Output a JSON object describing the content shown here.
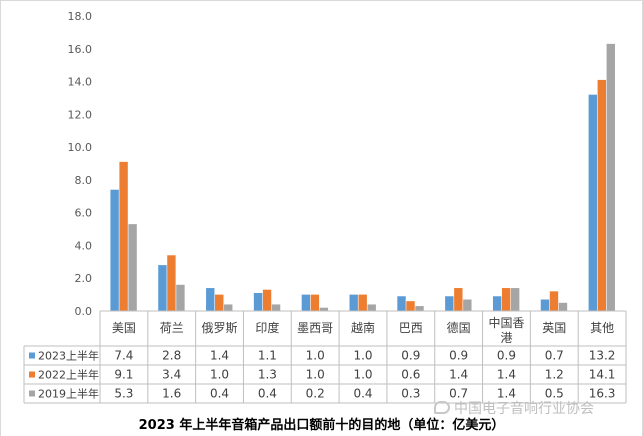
{
  "chart_data": {
    "type": "bar",
    "title": "2023 年上半年音箱产品出口额前十的目的地（单位：亿美元）",
    "categories": [
      "美国",
      "荷兰",
      "俄罗斯",
      "印度",
      "墨西哥",
      "越南",
      "巴西",
      "德国",
      "中国香港",
      "英国",
      "其他"
    ],
    "series": [
      {
        "name": "2023上半年",
        "color": "#5b9bd5",
        "values": [
          7.4,
          2.8,
          1.4,
          1.1,
          1.0,
          1.0,
          0.9,
          0.9,
          0.9,
          0.7,
          13.2
        ]
      },
      {
        "name": "2022上半年",
        "color": "#ed7d31",
        "values": [
          9.1,
          3.4,
          1.0,
          1.3,
          1.0,
          1.0,
          0.6,
          1.4,
          1.4,
          1.2,
          14.1
        ]
      },
      {
        "name": "2019上半年",
        "color": "#a5a5a5",
        "values": [
          5.3,
          1.6,
          0.4,
          0.4,
          0.2,
          0.4,
          0.3,
          0.7,
          1.4,
          0.5,
          16.3
        ]
      }
    ],
    "value_labels": [
      [
        "7.4",
        "2.8",
        "1.4",
        "1.1",
        "1.0",
        "1.0",
        "0.9",
        "0.9",
        "0.9",
        "0.7",
        "13.2"
      ],
      [
        "9.1",
        "3.4",
        "1.0",
        "1.3",
        "1.0",
        "1.0",
        "0.6",
        "1.4",
        "1.4",
        "1.2",
        "14.1"
      ],
      [
        "5.3",
        "1.6",
        "0.4",
        "0.4",
        "0.2",
        "0.4",
        "0.3",
        "0.7",
        "1.4",
        "0.5",
        "16.3"
      ]
    ],
    "yticks": [
      "0.0",
      "2.0",
      "4.0",
      "6.0",
      "8.0",
      "10.0",
      "12.0",
      "14.0",
      "16.0",
      "18.0"
    ],
    "ylim": [
      0,
      18
    ],
    "grid": false,
    "legend": "data-table"
  },
  "watermark": "中国电子音响行业协会"
}
